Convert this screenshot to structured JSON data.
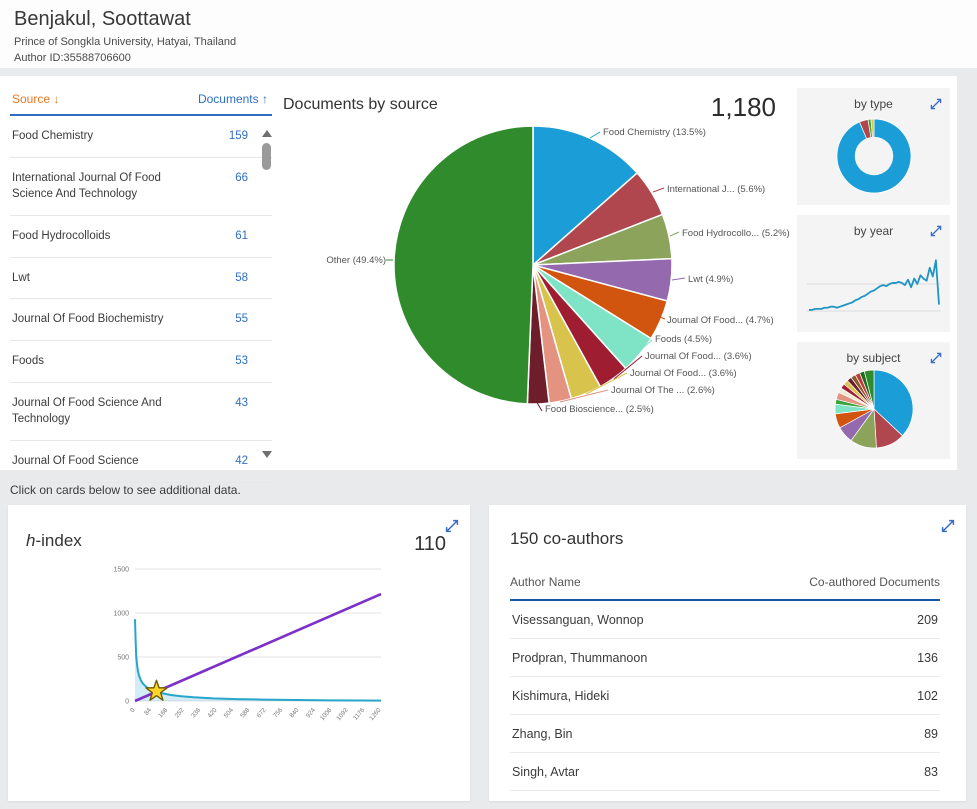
{
  "header": {
    "author_name": "Benjakul, Soottawat",
    "affiliation": "Prince of Songkla University, Hatyai, Thailand",
    "author_id": "Author ID:35588706600"
  },
  "colors": {
    "link_blue": "#2e6fc4",
    "sort_orange": "#e87722",
    "expand_icon_blue": "#3a6cc8",
    "table_underline_blue": "#1c55a6"
  },
  "source_table": {
    "col_source": "Source",
    "sort_desc_icon": "↓",
    "col_documents": "Documents",
    "sort_asc_icon": "↑",
    "rows": [
      {
        "source": "Food Chemistry",
        "documents": 159
      },
      {
        "source": "International Journal Of Food Science And Technology",
        "documents": 66
      },
      {
        "source": "Food Hydrocolloids",
        "documents": 61
      },
      {
        "source": "Lwt",
        "documents": 58
      },
      {
        "source": "Journal Of Food Biochemistry",
        "documents": 55
      },
      {
        "source": "Foods",
        "documents": 53
      },
      {
        "source": "Journal Of Food Science And Technology",
        "documents": 43
      },
      {
        "source": "Journal Of Food Science",
        "documents": 42
      }
    ]
  },
  "documents_by_source": {
    "title": "Documents by source",
    "total": "1,180"
  },
  "side_cards": {
    "by_type": {
      "title": "by type"
    },
    "by_year": {
      "title": "by year"
    },
    "by_subject": {
      "title": "by subject"
    }
  },
  "note": "Click on cards below to see additional data.",
  "h_index_card": {
    "title_h": "h",
    "title_rest": "-index",
    "value": "110"
  },
  "coauthors_card": {
    "title": "150 co-authors",
    "col_author": "Author Name",
    "col_docs": "Co-authored Documents",
    "rows": [
      {
        "name": "Visessanguan, Wonnop",
        "documents": 209
      },
      {
        "name": "Prodpran, Thummanoon",
        "documents": 136
      },
      {
        "name": "Kishimura, Hideki",
        "documents": 102
      },
      {
        "name": "Zhang, Bin",
        "documents": 89
      },
      {
        "name": "Singh, Avtar",
        "documents": 83
      }
    ]
  },
  "chart_data": [
    {
      "type": "pie",
      "title": "Documents by source",
      "total": 1180,
      "legend_position": "outside-labels",
      "slices": [
        {
          "label": "Food Chemistry (13.5%)",
          "pct": 13.5,
          "color": "#1b9dd8"
        },
        {
          "label": "International J... (5.6%)",
          "pct": 5.6,
          "color": "#b0464e"
        },
        {
          "label": "Food Hydrocollo... (5.2%)",
          "pct": 5.2,
          "color": "#8ca35c"
        },
        {
          "label": "Lwt (4.9%)",
          "pct": 4.9,
          "color": "#9469ae"
        },
        {
          "label": "Journal Of Food... (4.7%)",
          "pct": 4.7,
          "color": "#d1540f"
        },
        {
          "label": "Foods (4.5%)",
          "pct": 4.5,
          "color": "#7fe3c6"
        },
        {
          "label": "Journal Of Food... (3.6%)",
          "pct": 3.6,
          "color": "#9f1d30"
        },
        {
          "label": "Journal Of Food... (3.6%)",
          "pct": 3.6,
          "color": "#d8c44c"
        },
        {
          "label": "Journal Of The ... (2.6%)",
          "pct": 2.6,
          "color": "#e39380"
        },
        {
          "label": "Food Bioscience... (2.5%)",
          "pct": 2.5,
          "color": "#6e1d2a"
        },
        {
          "label": "Other (49.4%)",
          "pct": 49.4,
          "color": "#2f8b2c"
        }
      ]
    },
    {
      "type": "pie",
      "title": "by type",
      "donut": true,
      "slices": [
        {
          "pct": 93.6,
          "color": "#1b9dd8"
        },
        {
          "pct": 3.8,
          "color": "#b0464e"
        },
        {
          "pct": 1.3,
          "color": "#3aa33a"
        },
        {
          "pct": 1.3,
          "color": "#d8c44c"
        }
      ]
    },
    {
      "type": "line",
      "title": "by year",
      "ylim": [
        0,
        50
      ],
      "gridlines": [
        0,
        25
      ],
      "values": [
        1,
        1,
        2,
        2,
        2,
        3,
        3,
        4,
        4,
        3,
        4,
        5,
        6,
        7,
        8,
        10,
        11,
        13,
        14,
        16,
        18,
        19,
        21,
        23,
        24,
        23,
        25,
        26,
        26,
        27,
        26,
        24,
        29,
        22,
        30,
        25,
        33,
        30,
        28,
        40,
        32,
        47,
        6
      ]
    },
    {
      "type": "pie",
      "title": "by subject",
      "slices": [
        {
          "pct": 37,
          "color": "#1b9dd8"
        },
        {
          "pct": 12,
          "color": "#b0464e"
        },
        {
          "pct": 11,
          "color": "#8ca35c"
        },
        {
          "pct": 7,
          "color": "#9469ae"
        },
        {
          "pct": 6,
          "color": "#d1540f"
        },
        {
          "pct": 4,
          "color": "#7fe3c6"
        },
        {
          "pct": 2,
          "color": "#3aa33a"
        },
        {
          "pct": 3,
          "color": "#e39380"
        },
        {
          "pct": 2,
          "color": "#f0ead2"
        },
        {
          "pct": 2,
          "color": "#9f1d30"
        },
        {
          "pct": 2,
          "color": "#d8c44c"
        },
        {
          "pct": 2,
          "color": "#6e1d2a"
        },
        {
          "pct": 2,
          "color": "#8a5a2a"
        },
        {
          "pct": 2,
          "color": "#c23b3b"
        },
        {
          "pct": 2,
          "color": "#1e6b1e"
        },
        {
          "pct": 4,
          "color": "#2f8b2c"
        }
      ]
    },
    {
      "type": "line",
      "title": "h-index",
      "h_index": 110,
      "xlim": [
        0,
        1260
      ],
      "ylim": [
        0,
        1500
      ],
      "x_ticks": [
        0,
        84,
        168,
        252,
        336,
        420,
        504,
        588,
        672,
        756,
        840,
        924,
        1008,
        1092,
        1176,
        1260
      ],
      "y_ticks": [
        0,
        500,
        1000,
        1500
      ],
      "citations_curve": [
        [
          0,
          930
        ],
        [
          3,
          700
        ],
        [
          6,
          520
        ],
        [
          10,
          420
        ],
        [
          15,
          340
        ],
        [
          22,
          280
        ],
        [
          30,
          235
        ],
        [
          40,
          200
        ],
        [
          55,
          165
        ],
        [
          70,
          140
        ],
        [
          90,
          122
        ],
        [
          110,
          110
        ],
        [
          140,
          88
        ],
        [
          180,
          70
        ],
        [
          230,
          55
        ],
        [
          300,
          42
        ],
        [
          400,
          30
        ],
        [
          520,
          22
        ],
        [
          660,
          16
        ],
        [
          820,
          11
        ],
        [
          1000,
          7
        ],
        [
          1150,
          5
        ],
        [
          1260,
          4
        ]
      ],
      "reference_line": [
        [
          0,
          0
        ],
        [
          1260,
          1215
        ]
      ],
      "star": [
        110,
        110
      ]
    }
  ]
}
